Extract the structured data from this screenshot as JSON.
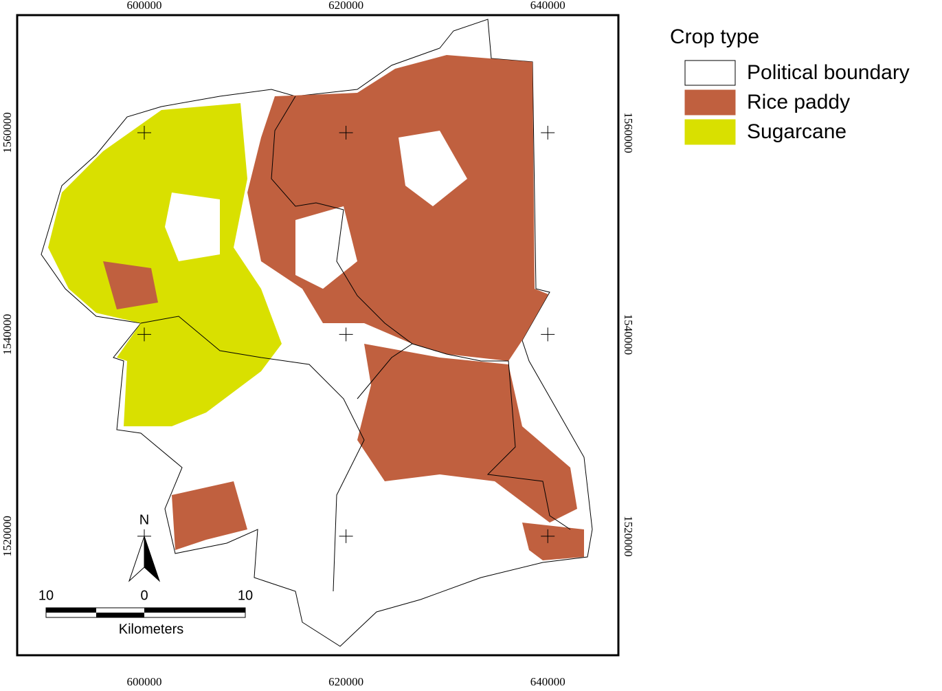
{
  "map": {
    "xlim": [
      587400,
      647000
    ],
    "ylim": [
      1508200,
      1571650
    ],
    "xticks": [
      600000,
      620000,
      640000
    ],
    "yticks": [
      1520000,
      1540000,
      1560000
    ],
    "legend": {
      "title": "Crop type",
      "items": [
        {
          "label": "Political boundary",
          "color": "#ffffff"
        },
        {
          "label": "Rice paddy",
          "color": "#c0603f"
        },
        {
          "label": "Sugarcane",
          "color": "#d9e000"
        }
      ]
    },
    "north_arrow": "N",
    "scale_bar": {
      "labels": [
        "10",
        "0",
        "10"
      ],
      "unit": "Kilometers"
    }
  }
}
